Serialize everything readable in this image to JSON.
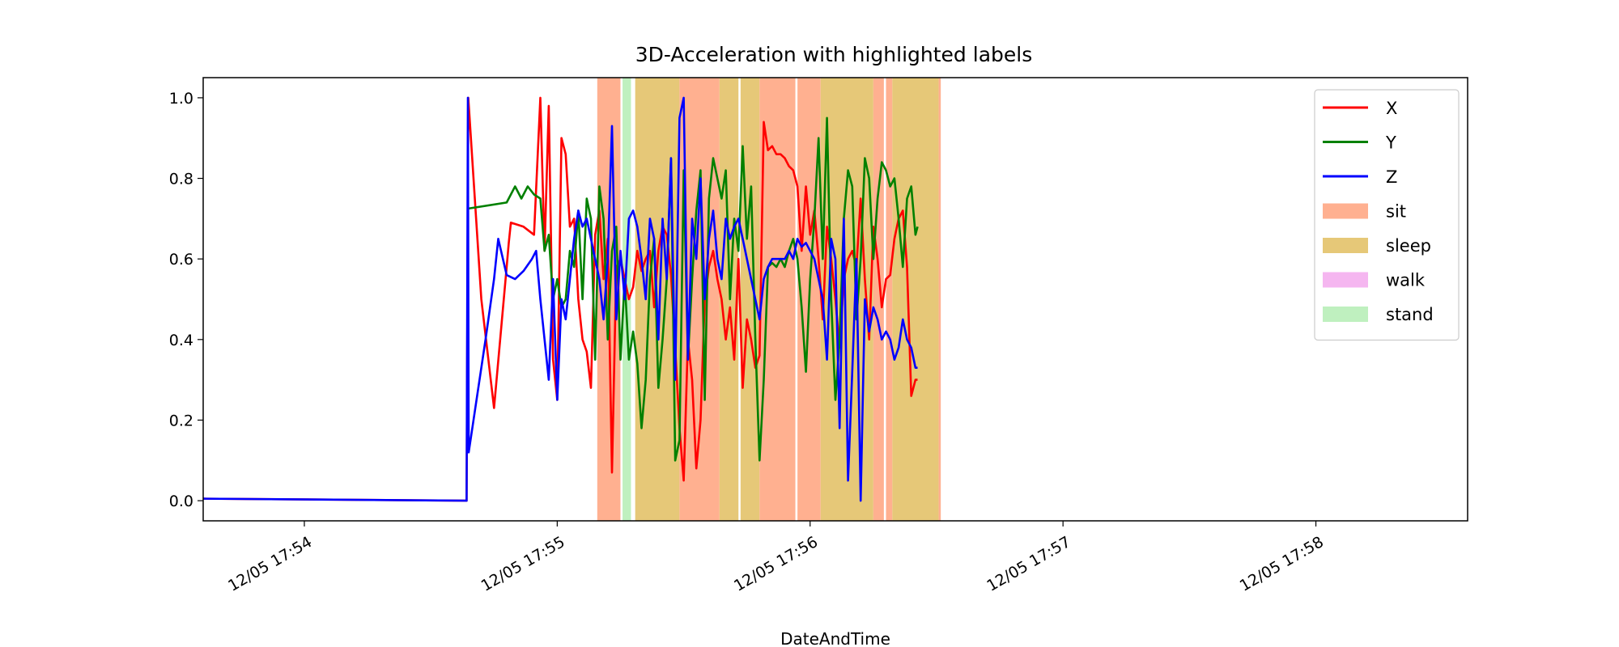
{
  "chart_data": {
    "type": "line",
    "title": "3D-Acceleration with highlighted labels",
    "xlabel": "DateAndTime",
    "ylabel": "",
    "x_unit": "seconds since 12/05 17:53",
    "xlim": [
      36,
      336
    ],
    "ylim": [
      -0.05,
      1.05
    ],
    "xticks": [
      {
        "value": 60,
        "label": "12/05 17:54"
      },
      {
        "value": 120,
        "label": "12/05 17:55"
      },
      {
        "value": 180,
        "label": "12/05 17:56"
      },
      {
        "value": 240,
        "label": "12/05 17:57"
      },
      {
        "value": 300,
        "label": "12/05 17:58"
      }
    ],
    "yticks": [
      {
        "value": 0.0,
        "label": "0.0"
      },
      {
        "value": 0.2,
        "label": "0.2"
      },
      {
        "value": 0.4,
        "label": "0.4"
      },
      {
        "value": 0.6,
        "label": "0.6"
      },
      {
        "value": 0.8,
        "label": "0.8"
      },
      {
        "value": 1.0,
        "label": "1.0"
      }
    ],
    "legend_position": "top-right",
    "grid": false,
    "series": [
      {
        "name": "X",
        "color": "#ff0000",
        "x": [
          36,
          98.5,
          98.9,
          102,
          105,
          108,
          108.5,
          109,
          112,
          114.5,
          116,
          117,
          118,
          119,
          120,
          121,
          122,
          123,
          124,
          125,
          126,
          127,
          128,
          129,
          130,
          131,
          132,
          133,
          134,
          135,
          136,
          137,
          138,
          139,
          140,
          141,
          142,
          143,
          144,
          145,
          146,
          147,
          148,
          149,
          150,
          151,
          152,
          153,
          154,
          155,
          156,
          157,
          158,
          159,
          160,
          161,
          162,
          163,
          164,
          165,
          166,
          167,
          168,
          169,
          170,
          171,
          172,
          173,
          174,
          175,
          176,
          177,
          178,
          179,
          180,
          181,
          182,
          183,
          184,
          185,
          186,
          187,
          188,
          189,
          190,
          191,
          192,
          193,
          194,
          195,
          196,
          197,
          198,
          199,
          200,
          201,
          202,
          203,
          204,
          205,
          205.5
        ],
        "values": [
          0.005,
          0.0,
          1.0,
          0.5,
          0.23,
          0.58,
          0.64,
          0.69,
          0.68,
          0.66,
          1.0,
          0.62,
          0.98,
          0.35,
          0.25,
          0.9,
          0.86,
          0.68,
          0.7,
          0.5,
          0.4,
          0.37,
          0.28,
          0.66,
          0.72,
          0.55,
          0.65,
          0.07,
          0.58,
          0.6,
          0.55,
          0.5,
          0.53,
          0.62,
          0.57,
          0.6,
          0.62,
          0.48,
          0.62,
          0.68,
          0.66,
          0.56,
          0.38,
          0.18,
          0.05,
          0.4,
          0.3,
          0.08,
          0.2,
          0.5,
          0.58,
          0.62,
          0.55,
          0.5,
          0.4,
          0.48,
          0.35,
          0.6,
          0.28,
          0.45,
          0.4,
          0.33,
          0.36,
          0.94,
          0.87,
          0.88,
          0.86,
          0.86,
          0.85,
          0.83,
          0.82,
          0.78,
          0.62,
          0.78,
          0.66,
          0.72,
          0.6,
          0.45,
          0.68,
          0.6,
          0.5,
          0.38,
          0.55,
          0.6,
          0.62,
          0.58,
          0.75,
          0.55,
          0.4,
          0.68,
          0.6,
          0.48,
          0.55,
          0.56,
          0.65,
          0.7,
          0.72,
          0.58,
          0.26,
          0.3,
          0.3
        ]
      },
      {
        "name": "Y",
        "color": "#008000",
        "x": [
          98.9,
          108,
          110,
          111.5,
          113,
          114.5,
          116,
          117,
          118,
          119,
          120,
          121,
          122,
          123,
          124,
          125,
          126,
          127,
          128,
          129,
          130,
          131,
          132,
          133,
          134,
          135,
          136,
          137,
          138,
          139,
          140,
          141,
          142,
          143,
          144,
          145,
          146,
          147,
          148,
          149,
          150,
          151,
          152,
          153,
          154,
          155,
          156,
          157,
          158,
          159,
          160,
          161,
          162,
          163,
          164,
          165,
          166,
          167,
          168,
          169,
          170,
          171,
          172,
          173,
          174,
          175,
          176,
          177,
          178,
          179,
          180,
          181,
          182,
          183,
          184,
          185,
          186,
          187,
          188,
          189,
          190,
          191,
          192,
          193,
          194,
          195,
          196,
          197,
          198,
          199,
          200,
          201,
          202,
          203,
          204,
          205,
          205.5
        ],
        "values": [
          0.725,
          0.74,
          0.78,
          0.75,
          0.78,
          0.76,
          0.75,
          0.62,
          0.66,
          0.5,
          0.55,
          0.48,
          0.5,
          0.62,
          0.58,
          0.72,
          0.5,
          0.75,
          0.7,
          0.35,
          0.78,
          0.7,
          0.4,
          0.62,
          0.68,
          0.35,
          0.55,
          0.35,
          0.42,
          0.34,
          0.18,
          0.3,
          0.55,
          0.65,
          0.28,
          0.4,
          0.55,
          0.85,
          0.1,
          0.15,
          0.82,
          0.35,
          0.55,
          0.72,
          0.82,
          0.25,
          0.75,
          0.85,
          0.8,
          0.75,
          0.82,
          0.5,
          0.7,
          0.62,
          0.88,
          0.65,
          0.78,
          0.4,
          0.1,
          0.3,
          0.58,
          0.59,
          0.58,
          0.6,
          0.58,
          0.62,
          0.65,
          0.6,
          0.48,
          0.32,
          0.55,
          0.7,
          0.9,
          0.6,
          0.95,
          0.5,
          0.25,
          0.4,
          0.7,
          0.82,
          0.78,
          0.45,
          0.6,
          0.85,
          0.8,
          0.6,
          0.75,
          0.84,
          0.82,
          0.78,
          0.8,
          0.7,
          0.58,
          0.75,
          0.78,
          0.66,
          0.68
        ]
      },
      {
        "name": "Z",
        "color": "#0000ff",
        "x": [
          36,
          98.5,
          98.8,
          99,
          103,
          105,
          106,
          108,
          110,
          112,
          114,
          115,
          116,
          117,
          118,
          119,
          120,
          121,
          122,
          123,
          124,
          125,
          126,
          127,
          128,
          129,
          130,
          131,
          132,
          133,
          134,
          135,
          136,
          137,
          138,
          139,
          140,
          141,
          142,
          143,
          144,
          145,
          146,
          147,
          148,
          149,
          150,
          151,
          152,
          153,
          154,
          155,
          156,
          157,
          158,
          159,
          160,
          161,
          162,
          163,
          164,
          165,
          166,
          167,
          168,
          169,
          170,
          171,
          172,
          173,
          174,
          175,
          176,
          177,
          178,
          179,
          180,
          181,
          182,
          183,
          184,
          185,
          186,
          187,
          188,
          189,
          190,
          191,
          192,
          193,
          194,
          195,
          196,
          197,
          198,
          199,
          200,
          201,
          202,
          203,
          204,
          205,
          205.5
        ],
        "values": [
          0.005,
          0.0,
          1.0,
          0.12,
          0.4,
          0.55,
          0.65,
          0.56,
          0.55,
          0.57,
          0.6,
          0.62,
          0.5,
          0.4,
          0.3,
          0.55,
          0.25,
          0.5,
          0.45,
          0.55,
          0.65,
          0.72,
          0.68,
          0.7,
          0.65,
          0.6,
          0.55,
          0.45,
          0.6,
          0.93,
          0.45,
          0.62,
          0.5,
          0.7,
          0.72,
          0.68,
          0.6,
          0.5,
          0.7,
          0.65,
          0.4,
          0.7,
          0.55,
          0.85,
          0.3,
          0.95,
          1.0,
          0.35,
          0.7,
          0.6,
          0.8,
          0.5,
          0.65,
          0.72,
          0.6,
          0.55,
          0.7,
          0.65,
          0.68,
          0.7,
          0.65,
          0.6,
          0.55,
          0.5,
          0.45,
          0.55,
          0.58,
          0.6,
          0.6,
          0.6,
          0.6,
          0.62,
          0.6,
          0.65,
          0.63,
          0.64,
          0.62,
          0.6,
          0.55,
          0.5,
          0.35,
          0.65,
          0.6,
          0.18,
          0.7,
          0.05,
          0.32,
          0.6,
          0.0,
          0.5,
          0.42,
          0.48,
          0.45,
          0.4,
          0.42,
          0.4,
          0.35,
          0.38,
          0.45,
          0.4,
          0.38,
          0.33,
          0.33
        ]
      }
    ],
    "label_spans": [
      {
        "label": "sit",
        "start": 129.5,
        "end": 135
      },
      {
        "label": "stand",
        "start": 135.5,
        "end": 137.5
      },
      {
        "label": "sleep",
        "start": 138.5,
        "end": 149
      },
      {
        "label": "sit",
        "start": 149,
        "end": 158.5
      },
      {
        "label": "sleep",
        "start": 158.5,
        "end": 163
      },
      {
        "label": "sleep",
        "start": 163.5,
        "end": 168
      },
      {
        "label": "sit",
        "start": 168,
        "end": 176.5
      },
      {
        "label": "sit",
        "start": 177,
        "end": 182.5
      },
      {
        "label": "sleep",
        "start": 182.5,
        "end": 195
      },
      {
        "label": "sit",
        "start": 195,
        "end": 197.5
      },
      {
        "label": "sit",
        "start": 198,
        "end": 199.5
      },
      {
        "label": "sleep",
        "start": 199.5,
        "end": 210.5
      },
      {
        "label": "sit",
        "start": 210.5,
        "end": 211
      }
    ],
    "legend": [
      {
        "name": "X",
        "kind": "line",
        "color": "#ff0000"
      },
      {
        "name": "Y",
        "kind": "line",
        "color": "#008000"
      },
      {
        "name": "Z",
        "kind": "line",
        "color": "#0000ff"
      },
      {
        "name": "sit",
        "kind": "patch",
        "color": "#ffb090"
      },
      {
        "name": "sleep",
        "kind": "patch",
        "color": "#e6c878"
      },
      {
        "name": "walk",
        "kind": "patch",
        "color": "#f5b6f0"
      },
      {
        "name": "stand",
        "kind": "patch",
        "color": "#bff0bf"
      }
    ]
  }
}
